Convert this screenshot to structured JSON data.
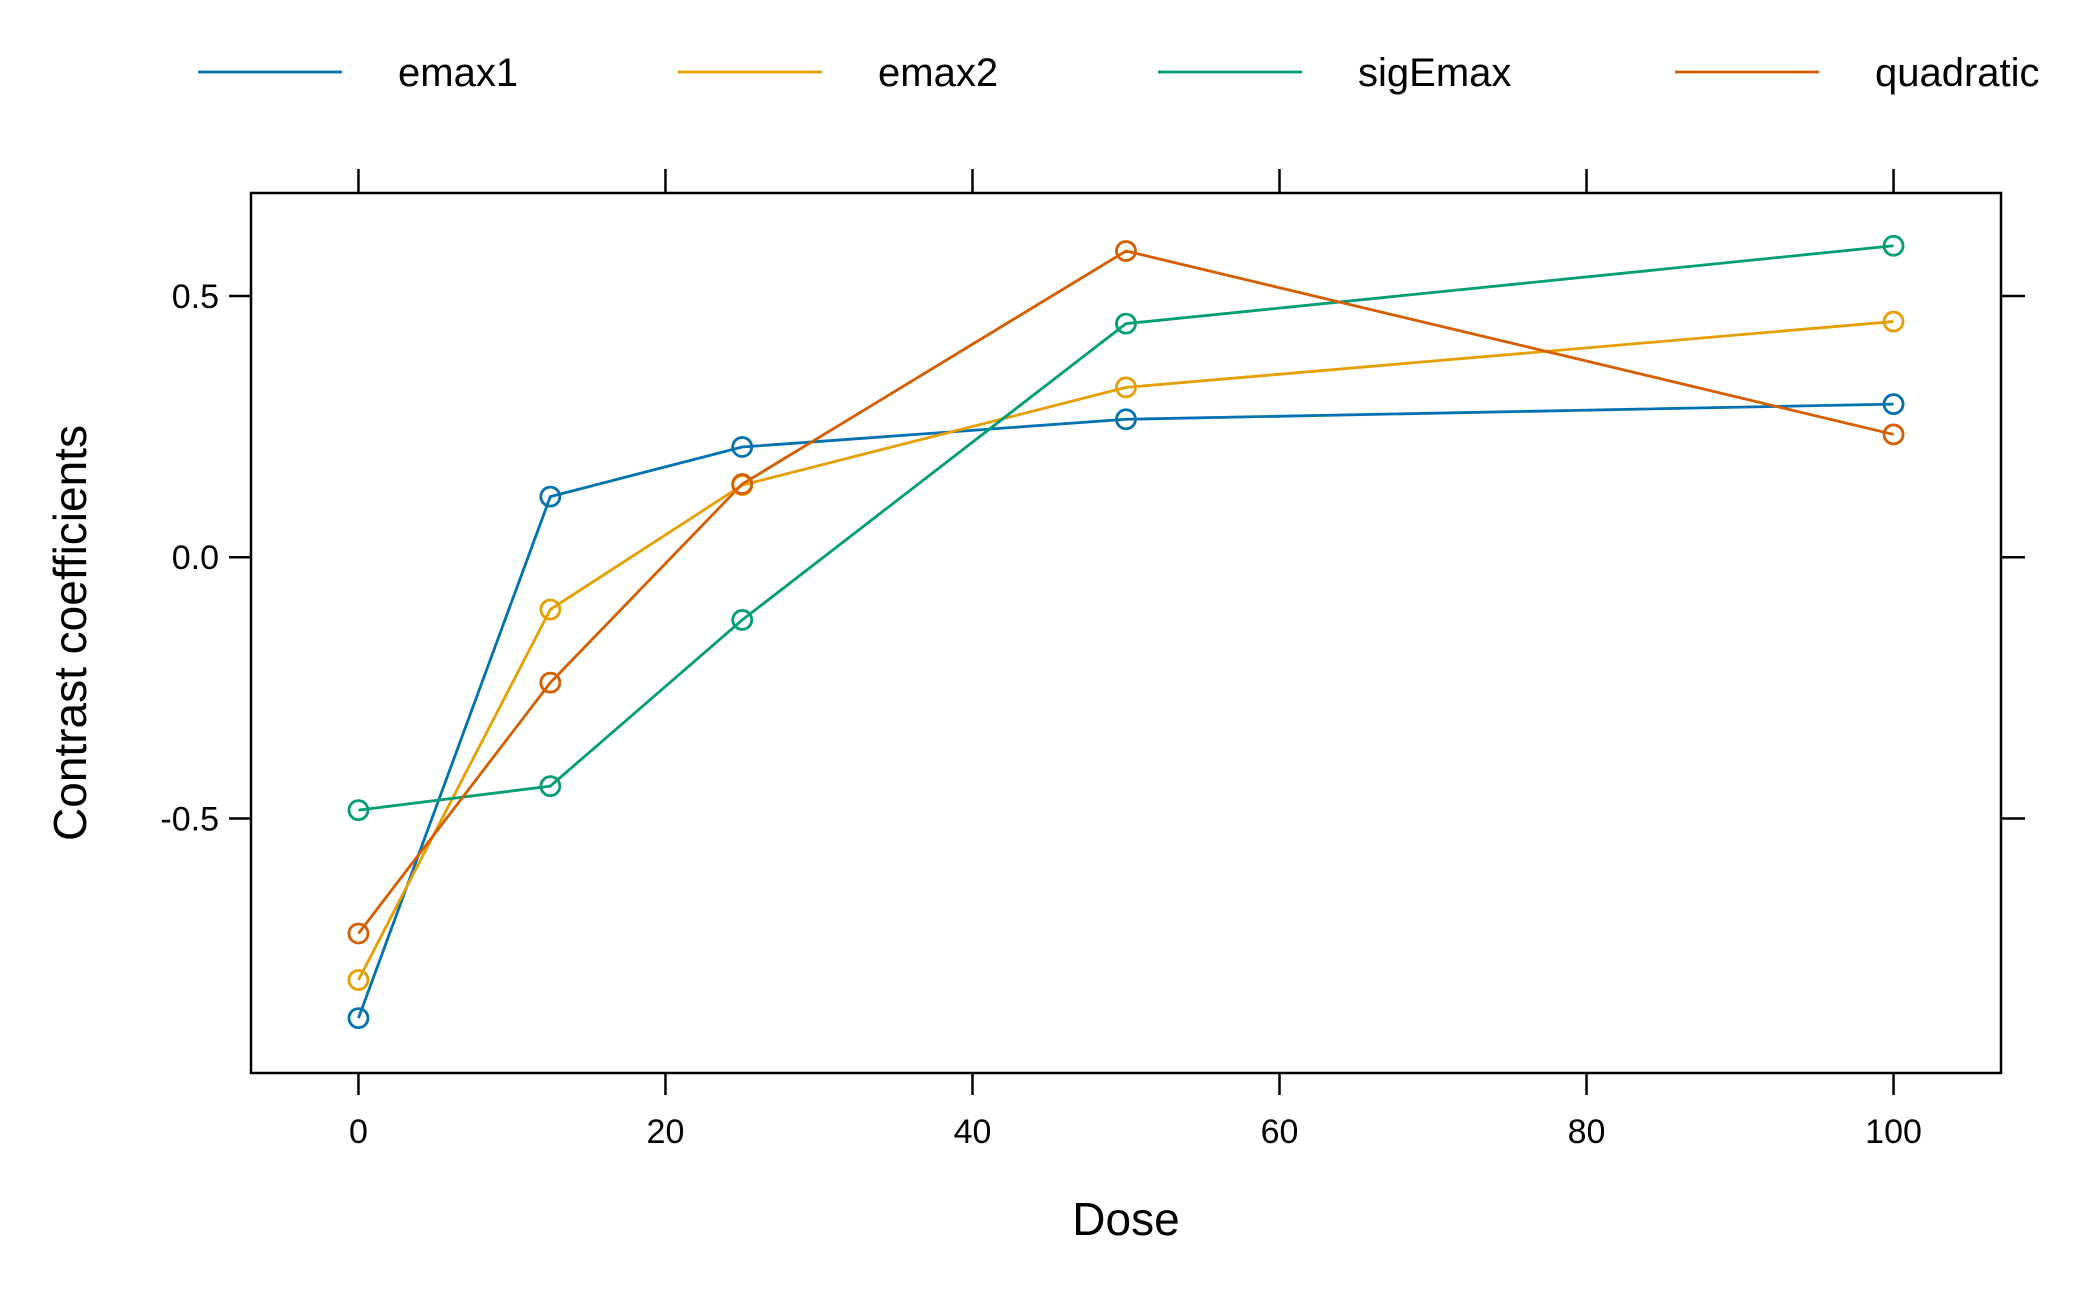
{
  "chart_data": {
    "type": "line",
    "title": "",
    "xlabel": "Dose",
    "ylabel": "Contrast coefficients",
    "xlim": [
      -7,
      107
    ],
    "ylim": [
      -0.987,
      0.697
    ],
    "x_ticks": [
      0,
      20,
      40,
      60,
      80,
      100
    ],
    "x_tick_labels": [
      "0",
      "20",
      "40",
      "60",
      "80",
      "100"
    ],
    "y_ticks": [
      -0.5,
      0.0,
      0.5
    ],
    "y_tick_labels": [
      "-0.5",
      "0.0",
      "0.5"
    ],
    "x": [
      0,
      12.5,
      25,
      50,
      100
    ],
    "legend_position": "top",
    "grid": false,
    "marker": "open-circle",
    "series": [
      {
        "name": "emax1",
        "color": "#0072B2",
        "values": [
          -0.882,
          0.116,
          0.211,
          0.264,
          0.293
        ]
      },
      {
        "name": "emax2",
        "color": "#E69F00",
        "values": [
          -0.809,
          -0.1,
          0.138,
          0.325,
          0.451
        ]
      },
      {
        "name": "sigEmax",
        "color": "#009E73",
        "values": [
          -0.484,
          -0.438,
          -0.12,
          0.447,
          0.596
        ]
      },
      {
        "name": "quadratic",
        "color": "#D55E00",
        "values": [
          -0.72,
          -0.24,
          0.14,
          0.586,
          0.235
        ]
      }
    ]
  }
}
